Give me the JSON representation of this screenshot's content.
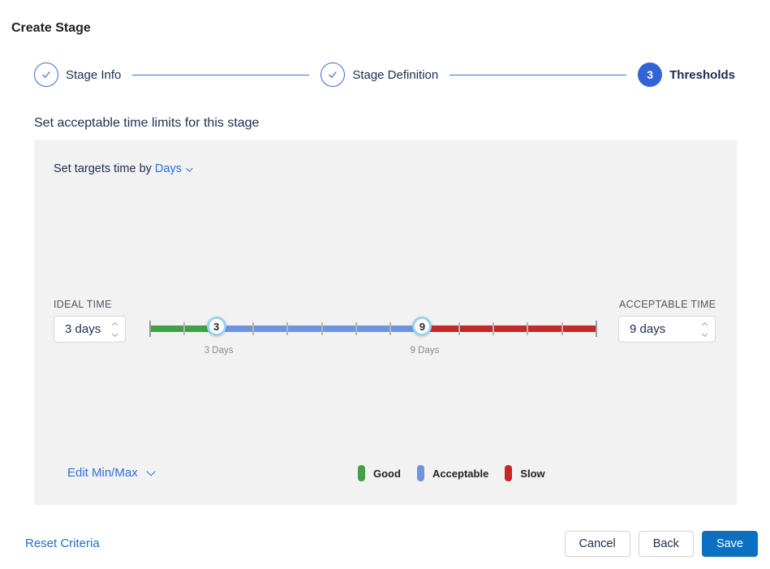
{
  "page": {
    "title": "Create Stage"
  },
  "stepper": {
    "steps": [
      {
        "label": "Stage Info",
        "state": "done"
      },
      {
        "label": "Stage Definition",
        "state": "done"
      },
      {
        "label": "Thresholds",
        "state": "current",
        "number": "3"
      }
    ]
  },
  "section": {
    "heading": "Set acceptable time limits for this stage"
  },
  "panel": {
    "target_time_label": "Set targets time by",
    "target_time_unit": "Days",
    "ideal": {
      "label": "IDEAL TIME",
      "value": "3 days"
    },
    "acceptable": {
      "label": "ACCEPTABLE TIME",
      "value": "9 days"
    },
    "slider": {
      "min_day": 1,
      "max_day": 14,
      "ideal_day": 3,
      "acceptable_day": 9,
      "ideal_handle_text": "3",
      "acceptable_handle_text": "9",
      "ideal_tick_label": "3 Days",
      "acceptable_tick_label": "9 Days",
      "colors": {
        "good": "#43a047",
        "acceptable": "#6e94de",
        "slow": "#c62828"
      }
    },
    "edit_minmax_label": "Edit Min/Max",
    "legend": [
      {
        "label": "Good",
        "color": "#43a047"
      },
      {
        "label": "Acceptable",
        "color": "#6e94de"
      },
      {
        "label": "Slow",
        "color": "#c62828"
      }
    ]
  },
  "footer": {
    "reset_label": "Reset Criteria",
    "cancel_label": "Cancel",
    "back_label": "Back",
    "save_label": "Save"
  }
}
